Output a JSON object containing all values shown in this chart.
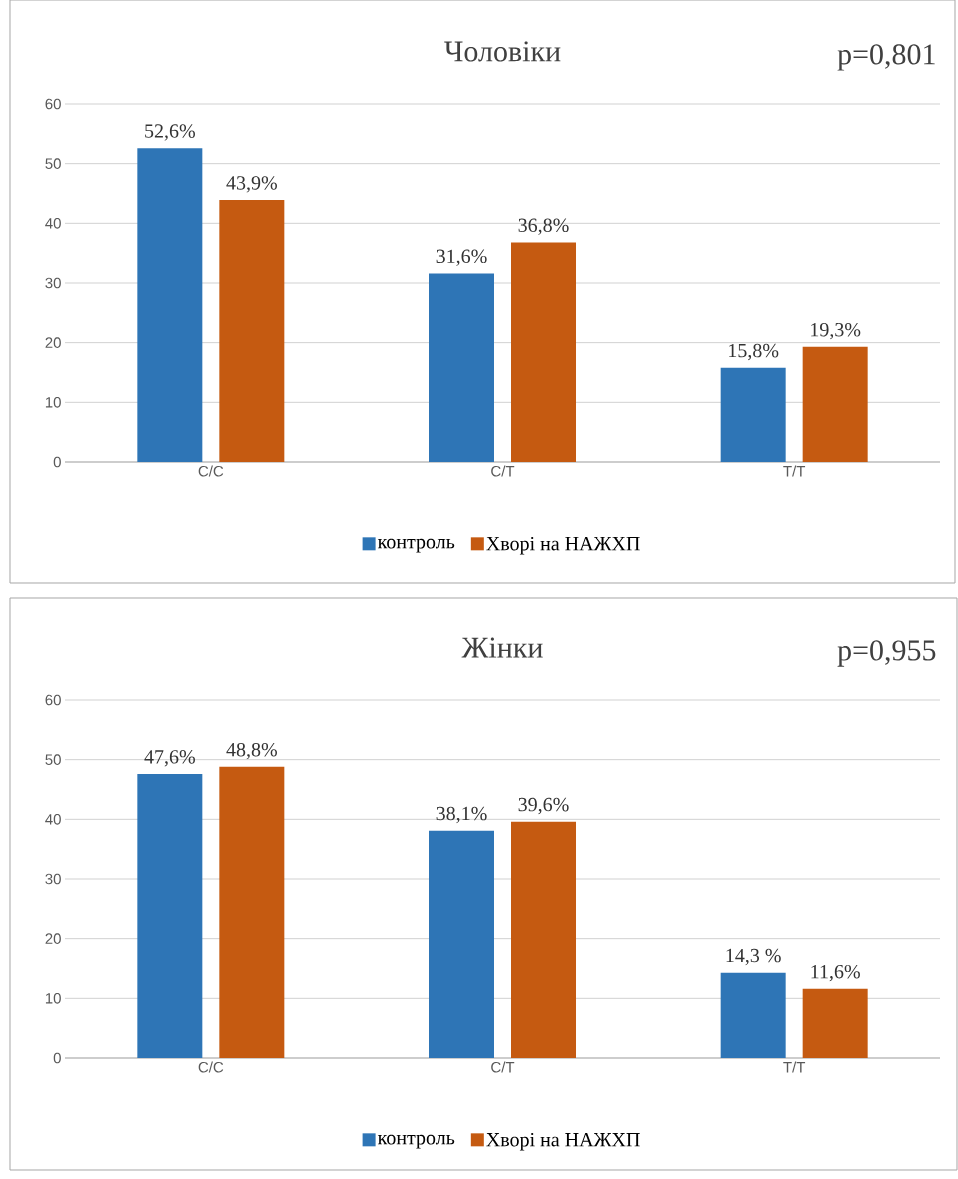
{
  "chart_data": [
    {
      "type": "bar",
      "title": "Чоловіки",
      "annotations": [
        "p=0,801"
      ],
      "categories": [
        "C/C",
        "C/T",
        "T/T"
      ],
      "series": [
        {
          "name": "контроль",
          "color": "#2e75b6",
          "values": [
            52.6,
            31.6,
            15.8
          ],
          "value_labels": [
            "52,6%",
            "31,6%",
            "15,8%"
          ]
        },
        {
          "name": "Хворі на НАЖХП",
          "color": "#c55a11",
          "values": [
            43.9,
            36.8,
            19.3
          ],
          "value_labels": [
            "43,9%",
            "36,8%",
            "19,3%"
          ]
        }
      ],
      "ylim": [
        0,
        60
      ],
      "yticks": [
        0,
        10,
        20,
        30,
        40,
        50,
        60
      ],
      "grid": "y",
      "legend": "bottom"
    },
    {
      "type": "bar",
      "title": "Жінки",
      "annotations": [
        "p=0,955"
      ],
      "categories": [
        "C/C",
        "C/T",
        "T/T"
      ],
      "series": [
        {
          "name": "контроль",
          "color": "#2e75b6",
          "values": [
            47.6,
            38.1,
            14.3
          ],
          "value_labels": [
            "47,6%",
            "38,1%",
            "14,3 %"
          ]
        },
        {
          "name": "Хворі на НАЖХП",
          "color": "#c55a11",
          "values": [
            48.8,
            39.6,
            11.6
          ],
          "value_labels": [
            "48,8%",
            "39,6%",
            "11,6%"
          ]
        }
      ],
      "ylim": [
        0,
        60
      ],
      "yticks": [
        0,
        10,
        20,
        30,
        40,
        50,
        60
      ],
      "grid": "y",
      "legend": "bottom"
    }
  ]
}
